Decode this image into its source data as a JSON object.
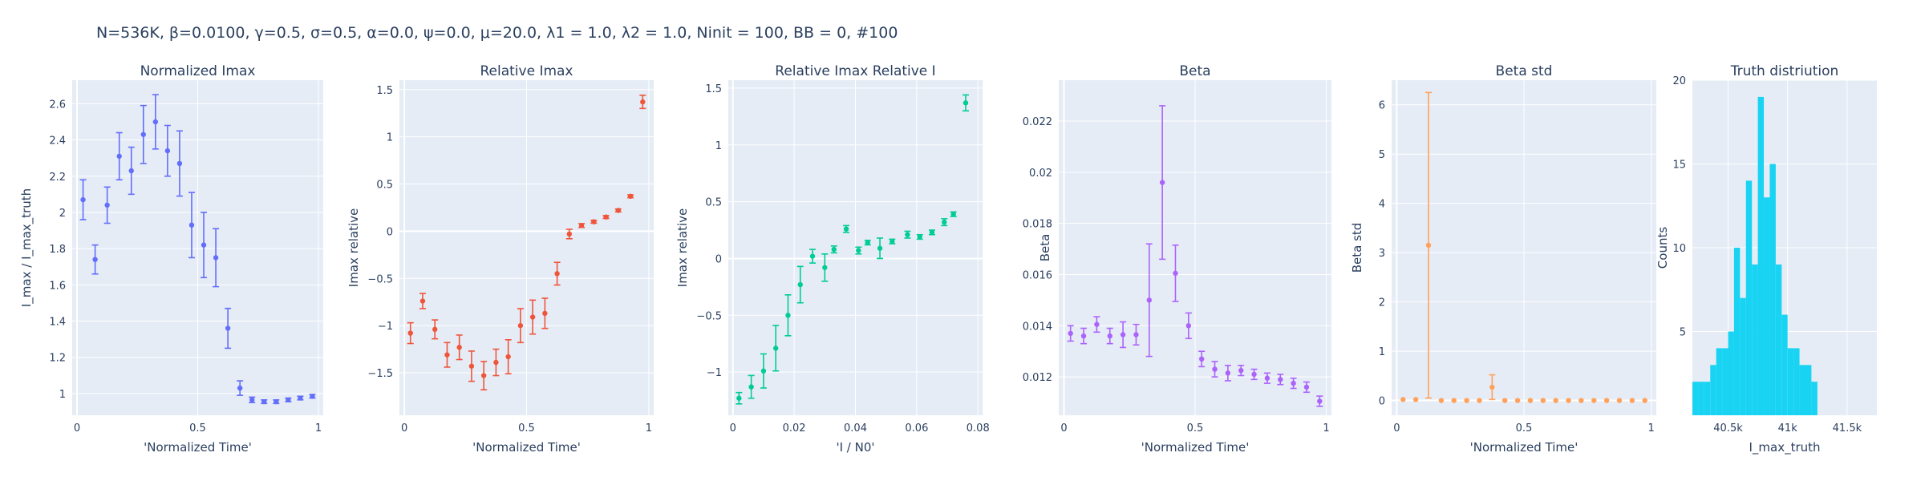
{
  "title": "N=536K, β=0.0100, γ=0.5, σ=0.5,  α=0.0, ψ=0.0, μ=20.0, λ1 = 1.0, λ2 = 1.0, Ninit = 100, BB = 0, #100",
  "chart_data": [
    {
      "type": "scatter",
      "title": "Normalized Imax",
      "xlabel": "'Normalized Time'",
      "ylabel": "I_max / I_max_truth",
      "color": "#636efa",
      "xlim": [
        -0.02,
        1.02
      ],
      "ylim": [
        0.88,
        2.73
      ],
      "xticks": [
        0,
        0.5,
        1
      ],
      "xtick_labels": [
        "0",
        "0.5",
        "1"
      ],
      "yticks": [
        1,
        1.2,
        1.4,
        1.6,
        1.8,
        2,
        2.2,
        2.4,
        2.6
      ],
      "ytick_labels": [
        "1",
        "1.2",
        "1.4",
        "1.6",
        "1.8",
        "2",
        "2.2",
        "2.4",
        "2.6"
      ],
      "grid": true,
      "points": [
        {
          "x": 0.025,
          "y": 2.07,
          "err": 0.11
        },
        {
          "x": 0.075,
          "y": 1.74,
          "err": 0.08
        },
        {
          "x": 0.125,
          "y": 2.04,
          "err": 0.1
        },
        {
          "x": 0.175,
          "y": 2.31,
          "err": 0.13
        },
        {
          "x": 0.225,
          "y": 2.23,
          "err": 0.13
        },
        {
          "x": 0.275,
          "y": 2.43,
          "err": 0.16
        },
        {
          "x": 0.325,
          "y": 2.5,
          "err": 0.15
        },
        {
          "x": 0.375,
          "y": 2.34,
          "err": 0.14
        },
        {
          "x": 0.425,
          "y": 2.27,
          "err": 0.18
        },
        {
          "x": 0.475,
          "y": 1.93,
          "err": 0.18
        },
        {
          "x": 0.525,
          "y": 1.82,
          "err": 0.18
        },
        {
          "x": 0.575,
          "y": 1.75,
          "err": 0.16
        },
        {
          "x": 0.625,
          "y": 1.36,
          "err": 0.11
        },
        {
          "x": 0.675,
          "y": 1.03,
          "err": 0.04
        },
        {
          "x": 0.725,
          "y": 0.965,
          "err": 0.015
        },
        {
          "x": 0.775,
          "y": 0.955,
          "err": 0.01
        },
        {
          "x": 0.825,
          "y": 0.955,
          "err": 0.01
        },
        {
          "x": 0.875,
          "y": 0.965,
          "err": 0.01
        },
        {
          "x": 0.925,
          "y": 0.975,
          "err": 0.01
        },
        {
          "x": 0.975,
          "y": 0.985,
          "err": 0.01
        }
      ]
    },
    {
      "type": "scatter",
      "title": "Relative Imax",
      "xlabel": "'Normalized Time'",
      "ylabel": "Imax relative",
      "color": "#ef553b",
      "xlim": [
        -0.02,
        1.02
      ],
      "ylim": [
        -1.95,
        1.6
      ],
      "xticks": [
        0,
        0.5,
        1
      ],
      "xtick_labels": [
        "0",
        "0.5",
        "1"
      ],
      "yticks": [
        -1.5,
        -1,
        -0.5,
        0,
        0.5,
        1,
        1.5
      ],
      "ytick_labels": [
        "−1.5",
        "−1",
        "−0.5",
        "0",
        "0.5",
        "1",
        "1.5"
      ],
      "grid": true,
      "points": [
        {
          "x": 0.025,
          "y": -1.08,
          "err": 0.11
        },
        {
          "x": 0.075,
          "y": -0.74,
          "err": 0.08
        },
        {
          "x": 0.125,
          "y": -1.04,
          "err": 0.1
        },
        {
          "x": 0.175,
          "y": -1.31,
          "err": 0.13
        },
        {
          "x": 0.225,
          "y": -1.23,
          "err": 0.13
        },
        {
          "x": 0.275,
          "y": -1.43,
          "err": 0.16
        },
        {
          "x": 0.325,
          "y": -1.53,
          "err": 0.15
        },
        {
          "x": 0.375,
          "y": -1.39,
          "err": 0.14
        },
        {
          "x": 0.425,
          "y": -1.33,
          "err": 0.18
        },
        {
          "x": 0.475,
          "y": -1.0,
          "err": 0.18
        },
        {
          "x": 0.525,
          "y": -0.91,
          "err": 0.18
        },
        {
          "x": 0.575,
          "y": -0.87,
          "err": 0.16
        },
        {
          "x": 0.625,
          "y": -0.45,
          "err": 0.12
        },
        {
          "x": 0.675,
          "y": -0.03,
          "err": 0.05
        },
        {
          "x": 0.725,
          "y": 0.06,
          "err": 0.02
        },
        {
          "x": 0.775,
          "y": 0.1,
          "err": 0.015
        },
        {
          "x": 0.825,
          "y": 0.15,
          "err": 0.015
        },
        {
          "x": 0.875,
          "y": 0.22,
          "err": 0.015
        },
        {
          "x": 0.925,
          "y": 0.37,
          "err": 0.015
        },
        {
          "x": 0.975,
          "y": 1.37,
          "err": 0.07
        }
      ]
    },
    {
      "type": "scatter",
      "title": "Relative Imax Relative I",
      "xlabel": "'I / N0'",
      "ylabel": "Imax relative",
      "color": "#00cc96",
      "xlim": [
        -0.0015,
        0.0815
      ],
      "ylim": [
        -1.38,
        1.57
      ],
      "xticks": [
        0,
        0.02,
        0.04,
        0.06,
        0.08
      ],
      "xtick_labels": [
        "0",
        "0.02",
        "0.04",
        "0.06",
        "0.08"
      ],
      "yticks": [
        -1,
        -0.5,
        0,
        0.5,
        1,
        1.5
      ],
      "ytick_labels": [
        "−1",
        "−0.5",
        "0",
        "0.5",
        "1",
        "1.5"
      ],
      "grid": true,
      "points": [
        {
          "x": 0.002,
          "y": -1.23,
          "err": 0.05
        },
        {
          "x": 0.006,
          "y": -1.13,
          "err": 0.1
        },
        {
          "x": 0.01,
          "y": -0.99,
          "err": 0.15
        },
        {
          "x": 0.014,
          "y": -0.79,
          "err": 0.2
        },
        {
          "x": 0.018,
          "y": -0.5,
          "err": 0.18
        },
        {
          "x": 0.022,
          "y": -0.23,
          "err": 0.16
        },
        {
          "x": 0.026,
          "y": 0.02,
          "err": 0.06
        },
        {
          "x": 0.03,
          "y": -0.08,
          "err": 0.12
        },
        {
          "x": 0.033,
          "y": 0.08,
          "err": 0.03
        },
        {
          "x": 0.037,
          "y": 0.26,
          "err": 0.03
        },
        {
          "x": 0.041,
          "y": 0.07,
          "err": 0.03
        },
        {
          "x": 0.044,
          "y": 0.14,
          "err": 0.02
        },
        {
          "x": 0.048,
          "y": 0.09,
          "err": 0.09
        },
        {
          "x": 0.052,
          "y": 0.15,
          "err": 0.02
        },
        {
          "x": 0.057,
          "y": 0.21,
          "err": 0.03
        },
        {
          "x": 0.061,
          "y": 0.19,
          "err": 0.02
        },
        {
          "x": 0.065,
          "y": 0.23,
          "err": 0.02
        },
        {
          "x": 0.069,
          "y": 0.32,
          "err": 0.03
        },
        {
          "x": 0.072,
          "y": 0.39,
          "err": 0.02
        },
        {
          "x": 0.076,
          "y": 1.37,
          "err": 0.07
        }
      ]
    },
    {
      "type": "scatter",
      "title": "Beta",
      "xlabel": "'Normalized Time'",
      "ylabel": "Beta",
      "color": "#ab63fa",
      "xlim": [
        -0.02,
        1.02
      ],
      "ylim": [
        0.0105,
        0.0236
      ],
      "xticks": [
        0,
        0.5,
        1
      ],
      "xtick_labels": [
        "0",
        "0.5",
        "1"
      ],
      "yticks": [
        0.012,
        0.014,
        0.016,
        0.018,
        0.02,
        0.022
      ],
      "ytick_labels": [
        "0.012",
        "0.014",
        "0.016",
        "0.018",
        "0.02",
        "0.022"
      ],
      "grid": true,
      "points": [
        {
          "x": 0.025,
          "y": 0.0137,
          "err": 0.0003
        },
        {
          "x": 0.075,
          "y": 0.0136,
          "err": 0.0003
        },
        {
          "x": 0.125,
          "y": 0.01405,
          "err": 0.0003
        },
        {
          "x": 0.175,
          "y": 0.0136,
          "err": 0.0003
        },
        {
          "x": 0.225,
          "y": 0.01365,
          "err": 0.0005
        },
        {
          "x": 0.275,
          "y": 0.01365,
          "err": 0.0004
        },
        {
          "x": 0.325,
          "y": 0.015,
          "err": 0.0022
        },
        {
          "x": 0.375,
          "y": 0.0196,
          "err": 0.003
        },
        {
          "x": 0.425,
          "y": 0.01605,
          "err": 0.0011
        },
        {
          "x": 0.475,
          "y": 0.014,
          "err": 0.0005
        },
        {
          "x": 0.525,
          "y": 0.0127,
          "err": 0.0003
        },
        {
          "x": 0.575,
          "y": 0.0123,
          "err": 0.0003
        },
        {
          "x": 0.625,
          "y": 0.01215,
          "err": 0.0003
        },
        {
          "x": 0.675,
          "y": 0.01225,
          "err": 0.0002
        },
        {
          "x": 0.725,
          "y": 0.0121,
          "err": 0.0002
        },
        {
          "x": 0.775,
          "y": 0.01195,
          "err": 0.0002
        },
        {
          "x": 0.825,
          "y": 0.0119,
          "err": 0.0002
        },
        {
          "x": 0.875,
          "y": 0.01175,
          "err": 0.0002
        },
        {
          "x": 0.925,
          "y": 0.0116,
          "err": 0.0002
        },
        {
          "x": 0.975,
          "y": 0.01105,
          "err": 0.0002
        }
      ]
    },
    {
      "type": "scatter",
      "title": "Beta std",
      "xlabel": "'Normalized Time'",
      "ylabel": "Beta std",
      "color": "#ffa15a",
      "xlim": [
        -0.02,
        1.02
      ],
      "ylim": [
        -0.3,
        6.5
      ],
      "xticks": [
        0,
        0.5,
        1
      ],
      "xtick_labels": [
        "0",
        "0.5",
        "1"
      ],
      "yticks": [
        0,
        1,
        2,
        3,
        4,
        5,
        6
      ],
      "ytick_labels": [
        "0",
        "1",
        "2",
        "3",
        "4",
        "5",
        "6"
      ],
      "grid": true,
      "points": [
        {
          "x": 0.025,
          "y": 0.02,
          "err": 0
        },
        {
          "x": 0.075,
          "y": 0.02,
          "err": 0
        },
        {
          "x": 0.125,
          "y": 3.15,
          "err": 3.1
        },
        {
          "x": 0.175,
          "y": 0.0,
          "err": 0
        },
        {
          "x": 0.225,
          "y": 0.0,
          "err": 0
        },
        {
          "x": 0.275,
          "y": 0.0,
          "err": 0
        },
        {
          "x": 0.325,
          "y": 0.0,
          "err": 0
        },
        {
          "x": 0.375,
          "y": 0.27,
          "err": 0.25
        },
        {
          "x": 0.425,
          "y": 0.0,
          "err": 0
        },
        {
          "x": 0.475,
          "y": 0.0,
          "err": 0
        },
        {
          "x": 0.525,
          "y": 0.0,
          "err": 0
        },
        {
          "x": 0.575,
          "y": 0.0,
          "err": 0
        },
        {
          "x": 0.625,
          "y": 0.0,
          "err": 0
        },
        {
          "x": 0.675,
          "y": 0.0,
          "err": 0
        },
        {
          "x": 0.725,
          "y": 0.0,
          "err": 0
        },
        {
          "x": 0.775,
          "y": 0.0,
          "err": 0
        },
        {
          "x": 0.825,
          "y": 0.0,
          "err": 0
        },
        {
          "x": 0.875,
          "y": 0.0,
          "err": 0
        },
        {
          "x": 0.925,
          "y": 0.0,
          "err": 0
        },
        {
          "x": 0.975,
          "y": 0.0,
          "err": 0
        }
      ]
    },
    {
      "type": "bar",
      "title": "Truth distriution",
      "xlabel": "I_max_truth",
      "ylabel": "Counts",
      "color": "#19d3f3",
      "xlim": [
        40200,
        41750
      ],
      "ylim": [
        0,
        20
      ],
      "xticks": [
        40500,
        41000,
        41500
      ],
      "xtick_labels": [
        "40.5k",
        "41k",
        "41.5k"
      ],
      "yticks": [
        5,
        10,
        15,
        20
      ],
      "ytick_labels": [
        "5",
        "10",
        "15",
        "20"
      ],
      "grid": true,
      "bin_width": 50,
      "bins": [
        {
          "start": 40200,
          "count": 2
        },
        {
          "start": 40250,
          "count": 2
        },
        {
          "start": 40300,
          "count": 2
        },
        {
          "start": 40350,
          "count": 3
        },
        {
          "start": 40400,
          "count": 4
        },
        {
          "start": 40450,
          "count": 4
        },
        {
          "start": 40500,
          "count": 5
        },
        {
          "start": 40550,
          "count": 10
        },
        {
          "start": 40600,
          "count": 7
        },
        {
          "start": 40650,
          "count": 14
        },
        {
          "start": 40700,
          "count": 9
        },
        {
          "start": 40750,
          "count": 19
        },
        {
          "start": 40800,
          "count": 13
        },
        {
          "start": 40850,
          "count": 15
        },
        {
          "start": 40900,
          "count": 9
        },
        {
          "start": 40950,
          "count": 6
        },
        {
          "start": 41000,
          "count": 4
        },
        {
          "start": 41050,
          "count": 4
        },
        {
          "start": 41100,
          "count": 3
        },
        {
          "start": 41150,
          "count": 3
        },
        {
          "start": 41200,
          "count": 2
        }
      ]
    }
  ]
}
